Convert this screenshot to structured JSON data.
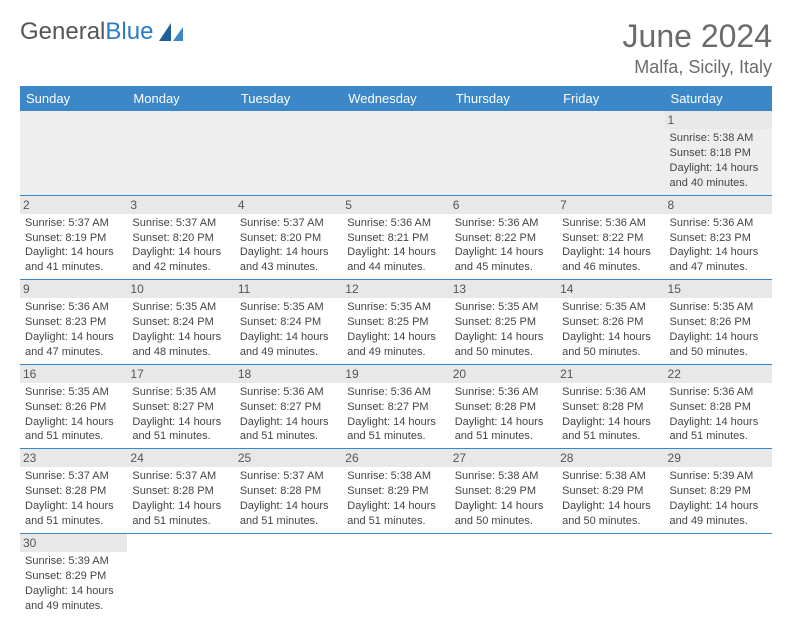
{
  "brand": {
    "part1": "General",
    "part2": "Blue"
  },
  "colors": {
    "header_bg": "#3b87c8",
    "header_text": "#ffffff",
    "daynum_bg": "#e8e8e8",
    "cell_border": "#3b87c8",
    "empty_bg": "#eeeeee",
    "title_color": "#6b6b6b",
    "brand_blue": "#2b7cc4"
  },
  "typography": {
    "month_title_fontsize": 32,
    "location_fontsize": 18,
    "weekday_fontsize": 13,
    "cell_fontsize": 11
  },
  "title": "June 2024",
  "location": "Malfa, Sicily, Italy",
  "weekdays": [
    "Sunday",
    "Monday",
    "Tuesday",
    "Wednesday",
    "Thursday",
    "Friday",
    "Saturday"
  ],
  "weeks": [
    [
      null,
      null,
      null,
      null,
      null,
      null,
      {
        "day": "1",
        "sunrise": "Sunrise: 5:38 AM",
        "sunset": "Sunset: 8:18 PM",
        "dl1": "Daylight: 14 hours",
        "dl2": "and 40 minutes."
      }
    ],
    [
      {
        "day": "2",
        "sunrise": "Sunrise: 5:37 AM",
        "sunset": "Sunset: 8:19 PM",
        "dl1": "Daylight: 14 hours",
        "dl2": "and 41 minutes."
      },
      {
        "day": "3",
        "sunrise": "Sunrise: 5:37 AM",
        "sunset": "Sunset: 8:20 PM",
        "dl1": "Daylight: 14 hours",
        "dl2": "and 42 minutes."
      },
      {
        "day": "4",
        "sunrise": "Sunrise: 5:37 AM",
        "sunset": "Sunset: 8:20 PM",
        "dl1": "Daylight: 14 hours",
        "dl2": "and 43 minutes."
      },
      {
        "day": "5",
        "sunrise": "Sunrise: 5:36 AM",
        "sunset": "Sunset: 8:21 PM",
        "dl1": "Daylight: 14 hours",
        "dl2": "and 44 minutes."
      },
      {
        "day": "6",
        "sunrise": "Sunrise: 5:36 AM",
        "sunset": "Sunset: 8:22 PM",
        "dl1": "Daylight: 14 hours",
        "dl2": "and 45 minutes."
      },
      {
        "day": "7",
        "sunrise": "Sunrise: 5:36 AM",
        "sunset": "Sunset: 8:22 PM",
        "dl1": "Daylight: 14 hours",
        "dl2": "and 46 minutes."
      },
      {
        "day": "8",
        "sunrise": "Sunrise: 5:36 AM",
        "sunset": "Sunset: 8:23 PM",
        "dl1": "Daylight: 14 hours",
        "dl2": "and 47 minutes."
      }
    ],
    [
      {
        "day": "9",
        "sunrise": "Sunrise: 5:36 AM",
        "sunset": "Sunset: 8:23 PM",
        "dl1": "Daylight: 14 hours",
        "dl2": "and 47 minutes."
      },
      {
        "day": "10",
        "sunrise": "Sunrise: 5:35 AM",
        "sunset": "Sunset: 8:24 PM",
        "dl1": "Daylight: 14 hours",
        "dl2": "and 48 minutes."
      },
      {
        "day": "11",
        "sunrise": "Sunrise: 5:35 AM",
        "sunset": "Sunset: 8:24 PM",
        "dl1": "Daylight: 14 hours",
        "dl2": "and 49 minutes."
      },
      {
        "day": "12",
        "sunrise": "Sunrise: 5:35 AM",
        "sunset": "Sunset: 8:25 PM",
        "dl1": "Daylight: 14 hours",
        "dl2": "and 49 minutes."
      },
      {
        "day": "13",
        "sunrise": "Sunrise: 5:35 AM",
        "sunset": "Sunset: 8:25 PM",
        "dl1": "Daylight: 14 hours",
        "dl2": "and 50 minutes."
      },
      {
        "day": "14",
        "sunrise": "Sunrise: 5:35 AM",
        "sunset": "Sunset: 8:26 PM",
        "dl1": "Daylight: 14 hours",
        "dl2": "and 50 minutes."
      },
      {
        "day": "15",
        "sunrise": "Sunrise: 5:35 AM",
        "sunset": "Sunset: 8:26 PM",
        "dl1": "Daylight: 14 hours",
        "dl2": "and 50 minutes."
      }
    ],
    [
      {
        "day": "16",
        "sunrise": "Sunrise: 5:35 AM",
        "sunset": "Sunset: 8:26 PM",
        "dl1": "Daylight: 14 hours",
        "dl2": "and 51 minutes."
      },
      {
        "day": "17",
        "sunrise": "Sunrise: 5:35 AM",
        "sunset": "Sunset: 8:27 PM",
        "dl1": "Daylight: 14 hours",
        "dl2": "and 51 minutes."
      },
      {
        "day": "18",
        "sunrise": "Sunrise: 5:36 AM",
        "sunset": "Sunset: 8:27 PM",
        "dl1": "Daylight: 14 hours",
        "dl2": "and 51 minutes."
      },
      {
        "day": "19",
        "sunrise": "Sunrise: 5:36 AM",
        "sunset": "Sunset: 8:27 PM",
        "dl1": "Daylight: 14 hours",
        "dl2": "and 51 minutes."
      },
      {
        "day": "20",
        "sunrise": "Sunrise: 5:36 AM",
        "sunset": "Sunset: 8:28 PM",
        "dl1": "Daylight: 14 hours",
        "dl2": "and 51 minutes."
      },
      {
        "day": "21",
        "sunrise": "Sunrise: 5:36 AM",
        "sunset": "Sunset: 8:28 PM",
        "dl1": "Daylight: 14 hours",
        "dl2": "and 51 minutes."
      },
      {
        "day": "22",
        "sunrise": "Sunrise: 5:36 AM",
        "sunset": "Sunset: 8:28 PM",
        "dl1": "Daylight: 14 hours",
        "dl2": "and 51 minutes."
      }
    ],
    [
      {
        "day": "23",
        "sunrise": "Sunrise: 5:37 AM",
        "sunset": "Sunset: 8:28 PM",
        "dl1": "Daylight: 14 hours",
        "dl2": "and 51 minutes."
      },
      {
        "day": "24",
        "sunrise": "Sunrise: 5:37 AM",
        "sunset": "Sunset: 8:28 PM",
        "dl1": "Daylight: 14 hours",
        "dl2": "and 51 minutes."
      },
      {
        "day": "25",
        "sunrise": "Sunrise: 5:37 AM",
        "sunset": "Sunset: 8:28 PM",
        "dl1": "Daylight: 14 hours",
        "dl2": "and 51 minutes."
      },
      {
        "day": "26",
        "sunrise": "Sunrise: 5:38 AM",
        "sunset": "Sunset: 8:29 PM",
        "dl1": "Daylight: 14 hours",
        "dl2": "and 51 minutes."
      },
      {
        "day": "27",
        "sunrise": "Sunrise: 5:38 AM",
        "sunset": "Sunset: 8:29 PM",
        "dl1": "Daylight: 14 hours",
        "dl2": "and 50 minutes."
      },
      {
        "day": "28",
        "sunrise": "Sunrise: 5:38 AM",
        "sunset": "Sunset: 8:29 PM",
        "dl1": "Daylight: 14 hours",
        "dl2": "and 50 minutes."
      },
      {
        "day": "29",
        "sunrise": "Sunrise: 5:39 AM",
        "sunset": "Sunset: 8:29 PM",
        "dl1": "Daylight: 14 hours",
        "dl2": "and 49 minutes."
      }
    ],
    [
      {
        "day": "30",
        "sunrise": "Sunrise: 5:39 AM",
        "sunset": "Sunset: 8:29 PM",
        "dl1": "Daylight: 14 hours",
        "dl2": "and 49 minutes."
      },
      null,
      null,
      null,
      null,
      null,
      null
    ]
  ]
}
